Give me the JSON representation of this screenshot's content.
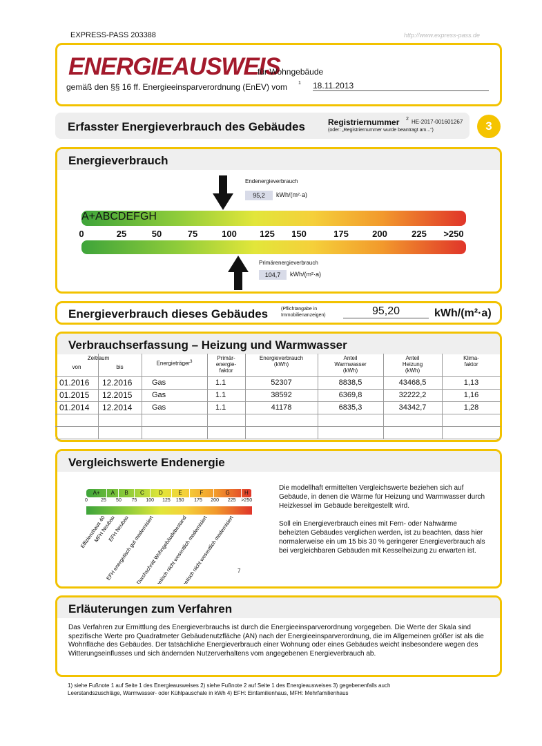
{
  "header": {
    "pass": "EXPRESS-PASS 203388",
    "url": "http://www.express-pass.de"
  },
  "title": {
    "main": "ENERGIEAUSWEIS",
    "suffix": "für Wohngebäude",
    "basis": "gemäß den §§ 16 ff. Energieeinsparverordnung (EnEV) vom",
    "footnote": "1",
    "date": "18.11.2013"
  },
  "section": {
    "title": "Erfasster Energieverbrauch des Gebäudes",
    "reg_label": "Registriernummer",
    "reg_footnote": "2",
    "reg_number": "HE-2017-001601267",
    "reg_note": "(oder: „Registriernummer wurde beantragt am...“)",
    "page": "3"
  },
  "energy": {
    "title": "Energieverbrauch",
    "end_label": "Endenergieverbrauch",
    "end_value": "95,2",
    "end_unit": "kWh/(m²·a)",
    "primary_label": "Primärenergieverbrauch",
    "primary_value": "104,7",
    "primary_unit": "kWh/(m²·a)",
    "classes": [
      "A+",
      "A",
      "B",
      "C",
      "D",
      "E",
      "F",
      "G",
      "H"
    ],
    "scale": [
      "0",
      "25",
      "50",
      "75",
      "100",
      "125",
      "150",
      "175",
      "200",
      "225",
      ">250"
    ]
  },
  "building": {
    "label": "Energieverbrauch dieses Gebäudes",
    "note": "(Pflichtangabe in\nImmobilienanzeigen)",
    "value": "95,20",
    "unit": "kWh/(m²·a)"
  },
  "table": {
    "title": "Verbrauchserfassung – Heizung und Warmwasser",
    "headers": {
      "period": "Zeitraum",
      "from": "von",
      "to": "bis",
      "carrier": "Energieträger",
      "carrier_footnote": "3",
      "factor": "Primär-\nenergie-\nfaktor",
      "consumption": "Energieverbrauch\n(kWh)",
      "water": "Anteil\nWarmwasser\n(kWh)",
      "heating": "Anteil\nHeizung\n(kWh)",
      "climate": "Klima-\nfaktor"
    },
    "rows": [
      [
        "01.2016",
        "12.2016",
        "Gas",
        "1.1",
        "52307",
        "8838,5",
        "43468,5",
        "1,13"
      ],
      [
        "01.2015",
        "12.2015",
        "Gas",
        "1.1",
        "38592",
        "6369,8",
        "32222,2",
        "1,16"
      ],
      [
        "01.2014",
        "12.2014",
        "Gas",
        "1.1",
        "41178",
        "6835,3",
        "34342,7",
        "1,28"
      ]
    ]
  },
  "comparison": {
    "title": "Vergleichswerte Endenergie",
    "labels": [
      "Effizienzhaus 40",
      "MFH Neubau",
      "EFH Neubau",
      "EFH energetisch gut modernisiert",
      "Durchschnitt Wohngebäudebestand",
      "MFH energetisch nicht wesentlich modernisiert",
      "EFH energetisch nicht wesentlich modernisiert"
    ],
    "footnote": "7",
    "text": [
      "Die modellhaft ermittelten Vergleichswerte beziehen sich auf Gebäude, in denen die Wärme für Heizung und Warmwasser durch Heizkessel im Gebäude bereitgestellt wird.",
      "Soll ein Energieverbrauch eines mit Fern- oder Nahwärme beheizten Gebäudes verglichen werden, ist zu beachten, dass hier normalerweise ein um 15 bis 30 % geringerer Energieverbrauch als bei vergleichbaren Gebäuden mit Kesselheizung zu erwarten ist."
    ]
  },
  "explanation": {
    "title": "Erläuterungen zum Verfahren",
    "text": "Das Verfahren zur Ermittlung des Energieverbrauchs ist durch die Energieeinsparverordnung vorgegeben. Die Werte der Skala sind spezifische Werte pro Quadratmeter Gebäudenutzfläche (AN) nach der Energieeinsparverordnung, die im Allgemeinen größer ist als die Wohnfläche des Gebäudes. Der tatsächliche Energieverbrauch einer Wohnung oder eines Gebäudes weicht insbesondere wegen des Witterungseinflusses und sich ändernden Nutzerverhaltens vom angegebenen Energieverbrauch ab."
  },
  "footnotes": "1) siehe Fußnote 1 auf Seite 1 des Energieausweises   2) siehe Fußnote 2 auf Seite 1 des Energieausweises   3) gegebenenfalls auch Leerstandszuschläge, Warmwasser- oder Kühlpauschale in kWh   4) EFH: Einfamilienhaus, MFH: Mehrfamilienhaus"
}
